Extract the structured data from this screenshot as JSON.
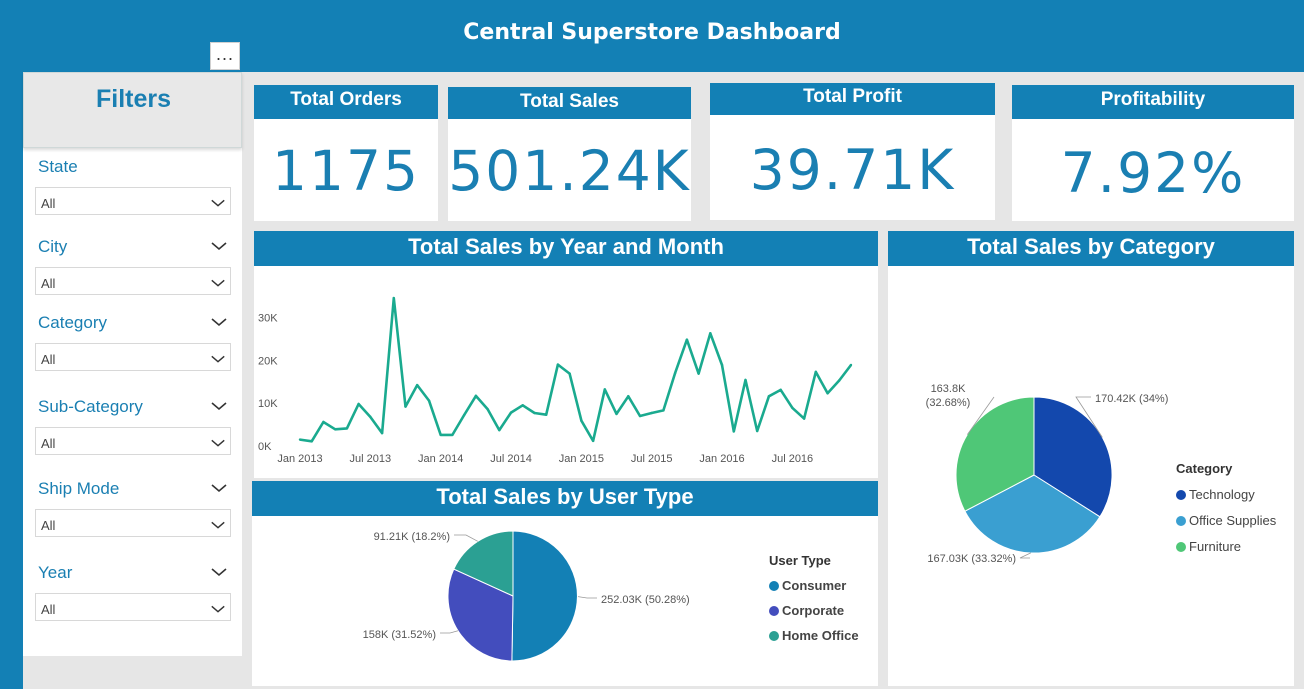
{
  "header": {
    "title": "Central Superstore Dashboard",
    "more_label": "..."
  },
  "filters": {
    "title": "Filters",
    "slicers": [
      {
        "label": "State",
        "value": "All"
      },
      {
        "label": "City",
        "value": "All"
      },
      {
        "label": "Category",
        "value": "All"
      },
      {
        "label": "Sub-Category",
        "value": "All"
      },
      {
        "label": "Ship Mode",
        "value": "All"
      },
      {
        "label": "Year",
        "value": "All"
      }
    ]
  },
  "kpis": {
    "orders": {
      "label": "Total Orders",
      "value": "1175"
    },
    "sales": {
      "label": "Total Sales",
      "value": "501.24K"
    },
    "profit": {
      "label": "Total Profit",
      "value": "39.71K"
    },
    "profitability": {
      "label": "Profitability",
      "value": "7.92%"
    }
  },
  "colors": {
    "brand": "#1380b5",
    "line": "#1aaa8f",
    "technology": "#1348ad",
    "office_supplies": "#3a9fd1",
    "furniture": "#4fc777",
    "consumer": "#1380b5",
    "corporate": "#434dbd",
    "home_office": "#2ba093"
  },
  "chart_data": [
    {
      "type": "line",
      "title": "Total Sales by Year and Month",
      "x_ticks": [
        "Jan 2013",
        "Jul 2013",
        "Jan 2014",
        "Jul 2014",
        "Jan 2015",
        "Jul 2015",
        "Jan 2016",
        "Jul 2016"
      ],
      "y_ticks": [
        "0K",
        "10K",
        "20K",
        "30K"
      ],
      "ylim": [
        0,
        35000
      ],
      "x": [
        "2013-01",
        "2013-02",
        "2013-03",
        "2013-04",
        "2013-05",
        "2013-06",
        "2013-07",
        "2013-08",
        "2013-09",
        "2013-10",
        "2013-11",
        "2013-12",
        "2014-01",
        "2014-02",
        "2014-03",
        "2014-04",
        "2014-05",
        "2014-06",
        "2014-07",
        "2014-08",
        "2014-09",
        "2014-10",
        "2014-11",
        "2014-12",
        "2015-01",
        "2015-02",
        "2015-03",
        "2015-04",
        "2015-05",
        "2015-06",
        "2015-07",
        "2015-08",
        "2015-09",
        "2015-10",
        "2015-11",
        "2015-12",
        "2016-01",
        "2016-02",
        "2016-03",
        "2016-04",
        "2016-05",
        "2016-06",
        "2016-07",
        "2016-08",
        "2016-09",
        "2016-10",
        "2016-11",
        "2016-12"
      ],
      "values": [
        1500,
        1100,
        5600,
        3900,
        4100,
        9800,
        6800,
        3000,
        34500,
        9200,
        14200,
        10600,
        2600,
        2600,
        7200,
        11700,
        8600,
        3700,
        7800,
        9500,
        7700,
        7300,
        19000,
        16900,
        5900,
        1200,
        13200,
        7500,
        11600,
        7000,
        7700,
        8300,
        17000,
        24800,
        16900,
        26300,
        18900,
        3400,
        15400,
        3500,
        11600,
        13100,
        8900,
        6400,
        17300,
        12300,
        15300,
        18900
      ]
    },
    {
      "type": "pie",
      "title": "Total Sales by Category",
      "legend_title": "Category",
      "legend_position": "right",
      "slices": [
        {
          "name": "Technology",
          "value": 170420,
          "label": "170.42K (34%)"
        },
        {
          "name": "Office Supplies",
          "value": 167030,
          "label": "167.03K (33.32%)"
        },
        {
          "name": "Furniture",
          "value": 163800,
          "label": "163.8K (32.68%)"
        }
      ]
    },
    {
      "type": "pie",
      "title": "Total Sales by User Type",
      "legend_title": "User Type",
      "legend_position": "right",
      "slices": [
        {
          "name": "Consumer",
          "value": 252030,
          "label": "252.03K (50.28%)"
        },
        {
          "name": "Corporate",
          "value": 158000,
          "label": "158K (31.52%)"
        },
        {
          "name": "Home Office",
          "value": 91210,
          "label": "91.21K (18.2%)"
        }
      ]
    }
  ]
}
